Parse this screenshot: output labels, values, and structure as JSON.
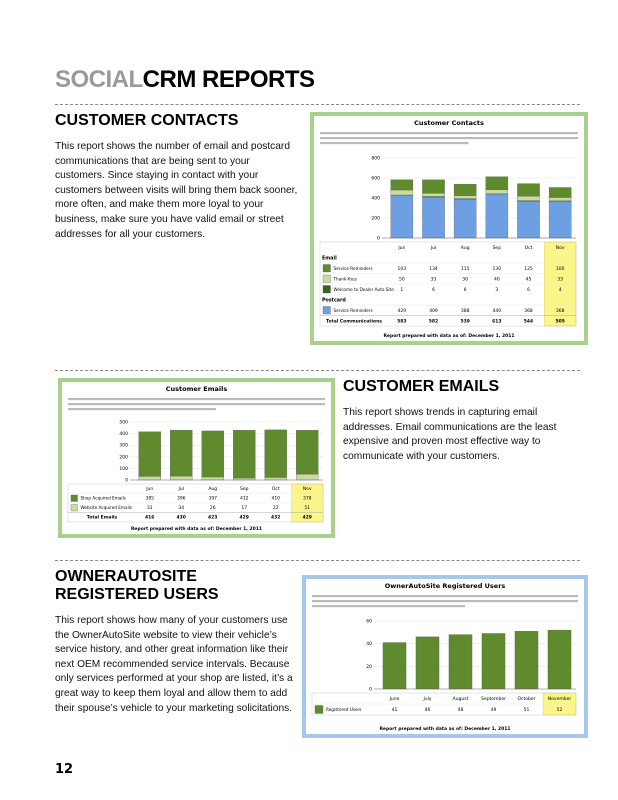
{
  "header": {
    "accent": "SOCIAL",
    "title": "CRM REPORTS"
  },
  "sections": [
    {
      "heading": "CUSTOMER CONTACTS",
      "body": "This report shows the number of email and postcard communications that are being sent to your customers. Since staying in contact with your customers between visits will bring them back sooner, more often, and make them more loyal to your business, make sure you have valid email or street addresses for all your customers.",
      "report": {
        "title": "Customer Contacts",
        "footer": "Report prepared with data as of: December 1, 2011",
        "chart": {
          "type": "bar",
          "stacked": true,
          "highlight_last": true,
          "categories": [
            "Jun",
            "Jul",
            "Aug",
            "Sep",
            "Oct",
            "Nov"
          ],
          "ylim": [
            0,
            800
          ],
          "yticks": [
            0,
            200,
            400,
            600,
            800
          ],
          "groups": [
            {
              "name": "Email",
              "series": [
                {
                  "name": "Service Reminders",
                  "color": "#5f8a2e",
                  "values": [
                    103,
                    134,
                    115,
                    130,
                    125,
                    100
                  ]
                },
                {
                  "name": "Thank-Yous",
                  "color": "#c9dc9c",
                  "values": [
                    50,
                    33,
                    30,
                    40,
                    45,
                    33
                  ]
                },
                {
                  "name": "Welcome to Dealer Auto Site",
                  "color": "#3d5e1e",
                  "values": [
                    1,
                    6,
                    6,
                    3,
                    6,
                    4
                  ]
                }
              ]
            },
            {
              "name": "Postcard",
              "series": [
                {
                  "name": "Service Reminders",
                  "color": "#6e9fe3",
                  "values": [
                    429,
                    409,
                    388,
                    440,
                    368,
                    368
                  ]
                }
              ]
            }
          ],
          "totals": {
            "label": "Total Communications",
            "values": [
              583,
              582,
              539,
              613,
              544,
              505
            ]
          }
        }
      }
    },
    {
      "heading": "CUSTOMER EMAILS",
      "body": "This report shows trends in capturing email addresses. Email communications are the least expensive and proven most effective way to communicate with your customers.",
      "report": {
        "title": "Customer Emails",
        "footer": "Report prepared with data as of: December 1, 2011",
        "chart": {
          "type": "bar",
          "stacked": true,
          "highlight_last": true,
          "categories": [
            "Jun",
            "Jul",
            "Aug",
            "Sep",
            "Oct",
            "Nov"
          ],
          "ylim": [
            0,
            500
          ],
          "yticks": [
            0,
            100,
            200,
            300,
            400,
            500
          ],
          "groups": [
            {
              "series": [
                {
                  "name": "Shop Acquired Emails",
                  "color": "#5f8a2e",
                  "values": [
                    385,
                    396,
                    397,
                    412,
                    410,
                    378
                  ]
                },
                {
                  "name": "Website Acquired Emails",
                  "color": "#c9dc9c",
                  "values": [
                    31,
                    34,
                    26,
                    17,
                    22,
                    51
                  ]
                }
              ]
            }
          ],
          "totals": {
            "label": "Total Emails",
            "values": [
              416,
              430,
              423,
              429,
              432,
              429
            ]
          }
        }
      }
    },
    {
      "heading": "OWNERAUTOSITE REGISTERED USERS",
      "body": "This report shows how many of your customers use the OwnerAutoSite website to view their vehicle’s service history, and other great information like their next OEM recommended service intervals. Because only services performed at your shop are listed, it’s a great way to keep them loyal and allow them to add their spouse’s vehicle to your marketing solicitations.",
      "report": {
        "title": "OwnerAutoSite Registered Users",
        "footer": "Report prepared with data as of: December 1, 2011",
        "chart": {
          "type": "bar",
          "stacked": true,
          "highlight_last": true,
          "categories": [
            "June",
            "July",
            "August",
            "September",
            "October",
            "November"
          ],
          "ylim": [
            0,
            60
          ],
          "yticks": [
            0,
            20,
            40,
            60
          ],
          "groups": [
            {
              "series": [
                {
                  "name": "Registered Users",
                  "color": "#5f8a2e",
                  "values": [
                    41,
                    46,
                    48,
                    49,
                    51,
                    52
                  ]
                }
              ]
            }
          ]
        }
      }
    }
  ],
  "page_number": "12"
}
